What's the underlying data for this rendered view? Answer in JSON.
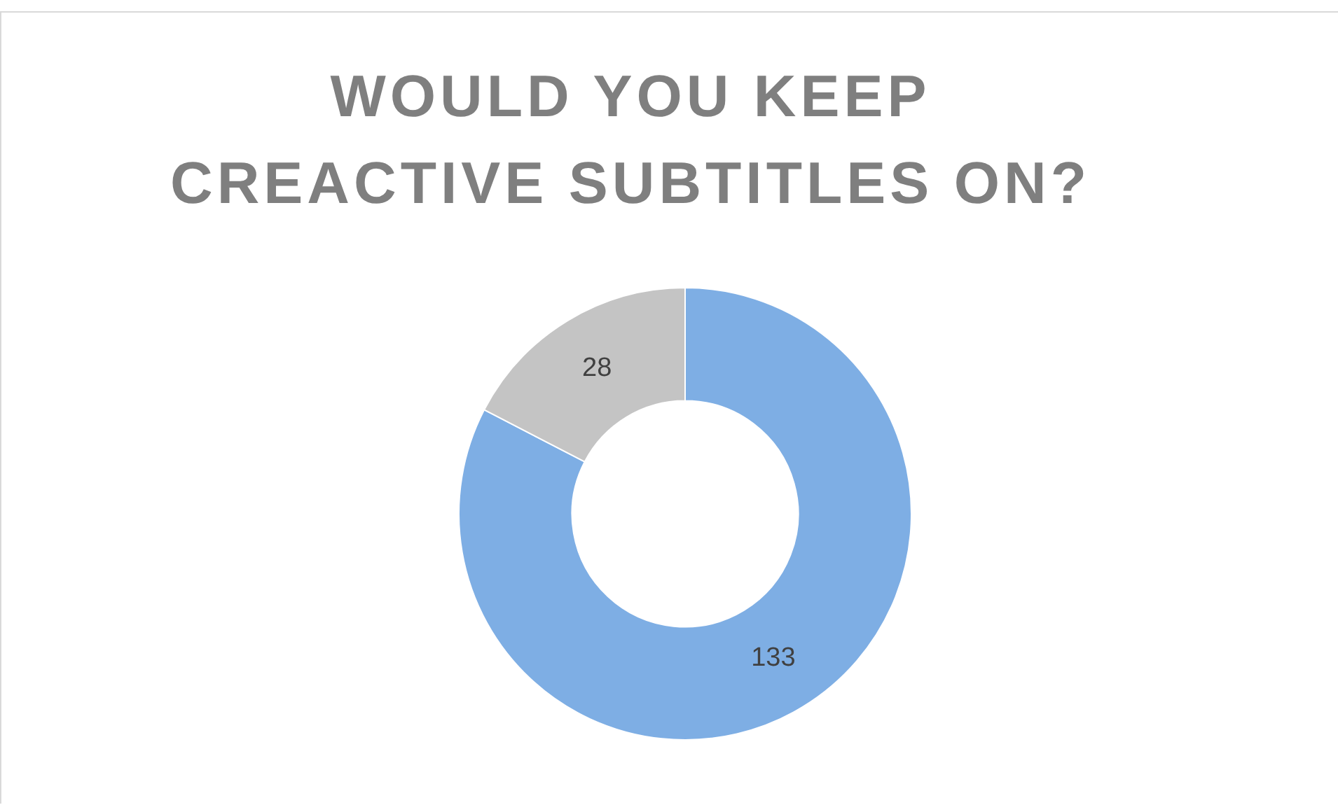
{
  "chart_data": {
    "type": "donut",
    "title": "WOULD YOU KEEP CREACTIVE SUBTITLES ON?",
    "categories": [
      null,
      null
    ],
    "values": [
      133,
      28
    ],
    "colors": [
      "#7eaee4",
      "#c4c4c4"
    ],
    "data_labels": true,
    "legend": false
  }
}
